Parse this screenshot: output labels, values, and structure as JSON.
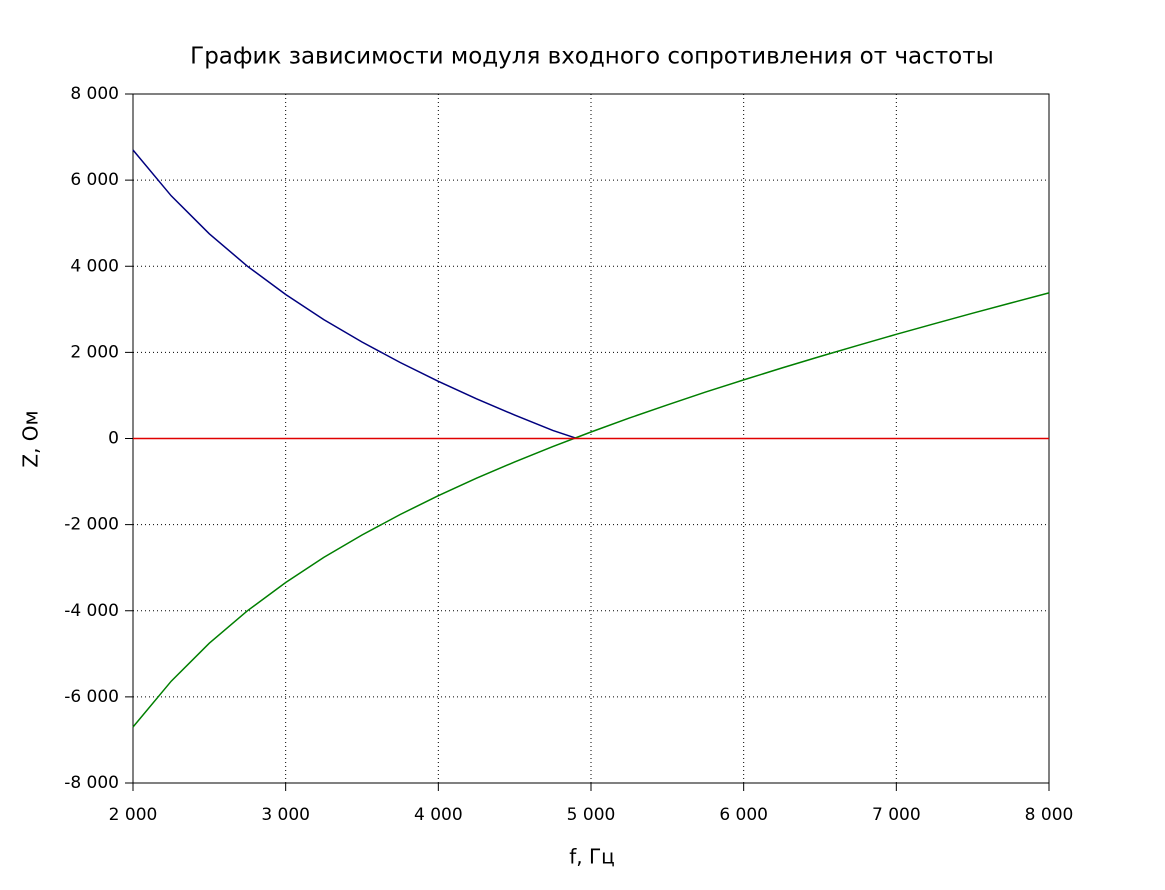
{
  "chart_data": {
    "type": "line",
    "title": "График зависимости модуля входного сопротивления от частоты",
    "xlabel": "f, Гц",
    "ylabel": "Z, Ом",
    "series": [
      {
        "color": "#00007f",
        "x": [
          2000,
          2250,
          2500,
          2750,
          3000,
          3250,
          3500,
          3750,
          4000,
          4250,
          4500,
          4750,
          4900
        ],
        "values": [
          6700,
          5637,
          4753,
          3999,
          3343,
          2762,
          2240,
          1764,
          1328,
          922,
          544,
          187,
          10
        ]
      },
      {
        "color": "#007f00",
        "x": [
          2000,
          2250,
          2500,
          2750,
          3000,
          3250,
          3500,
          3750,
          4000,
          4250,
          4500,
          4750,
          5000,
          5250,
          5500,
          5750,
          6000,
          6250,
          6500,
          6750,
          7000,
          7250,
          7500,
          7750,
          8000
        ],
        "values": [
          -6700,
          -5637,
          -4753,
          -3999,
          -3343,
          -2762,
          -2240,
          -1764,
          -1328,
          -922,
          -544,
          -187,
          151,
          473,
          780,
          1077,
          1361,
          1638,
          1905,
          2165,
          2419,
          2667,
          2909,
          3147,
          3380
        ]
      },
      {
        "color": "#e00000",
        "x": [
          2000,
          8000
        ],
        "values": [
          0,
          0
        ]
      }
    ],
    "xlim": [
      2000,
      8000
    ],
    "xticks": [
      {
        "value": 2000,
        "label": "2 000"
      },
      {
        "value": 3000,
        "label": "3 000"
      },
      {
        "value": 4000,
        "label": "4 000"
      },
      {
        "value": 5000,
        "label": "5 000"
      },
      {
        "value": 6000,
        "label": "6 000"
      },
      {
        "value": 7000,
        "label": "7 000"
      },
      {
        "value": 8000,
        "label": "8 000"
      }
    ],
    "ylim": [
      -8000,
      8000
    ],
    "yticks": [
      {
        "value": -8000,
        "label": "-8 000"
      },
      {
        "value": -6000,
        "label": "-6 000"
      },
      {
        "value": -4000,
        "label": "-4 000"
      },
      {
        "value": -2000,
        "label": "-2 000"
      },
      0,
      {
        "value": 2000,
        "label": "2 000"
      },
      {
        "value": 4000,
        "label": "4 000"
      },
      {
        "value": 6000,
        "label": "6 000"
      },
      {
        "value": 8000,
        "label": "8 000"
      }
    ],
    "grid": true
  }
}
